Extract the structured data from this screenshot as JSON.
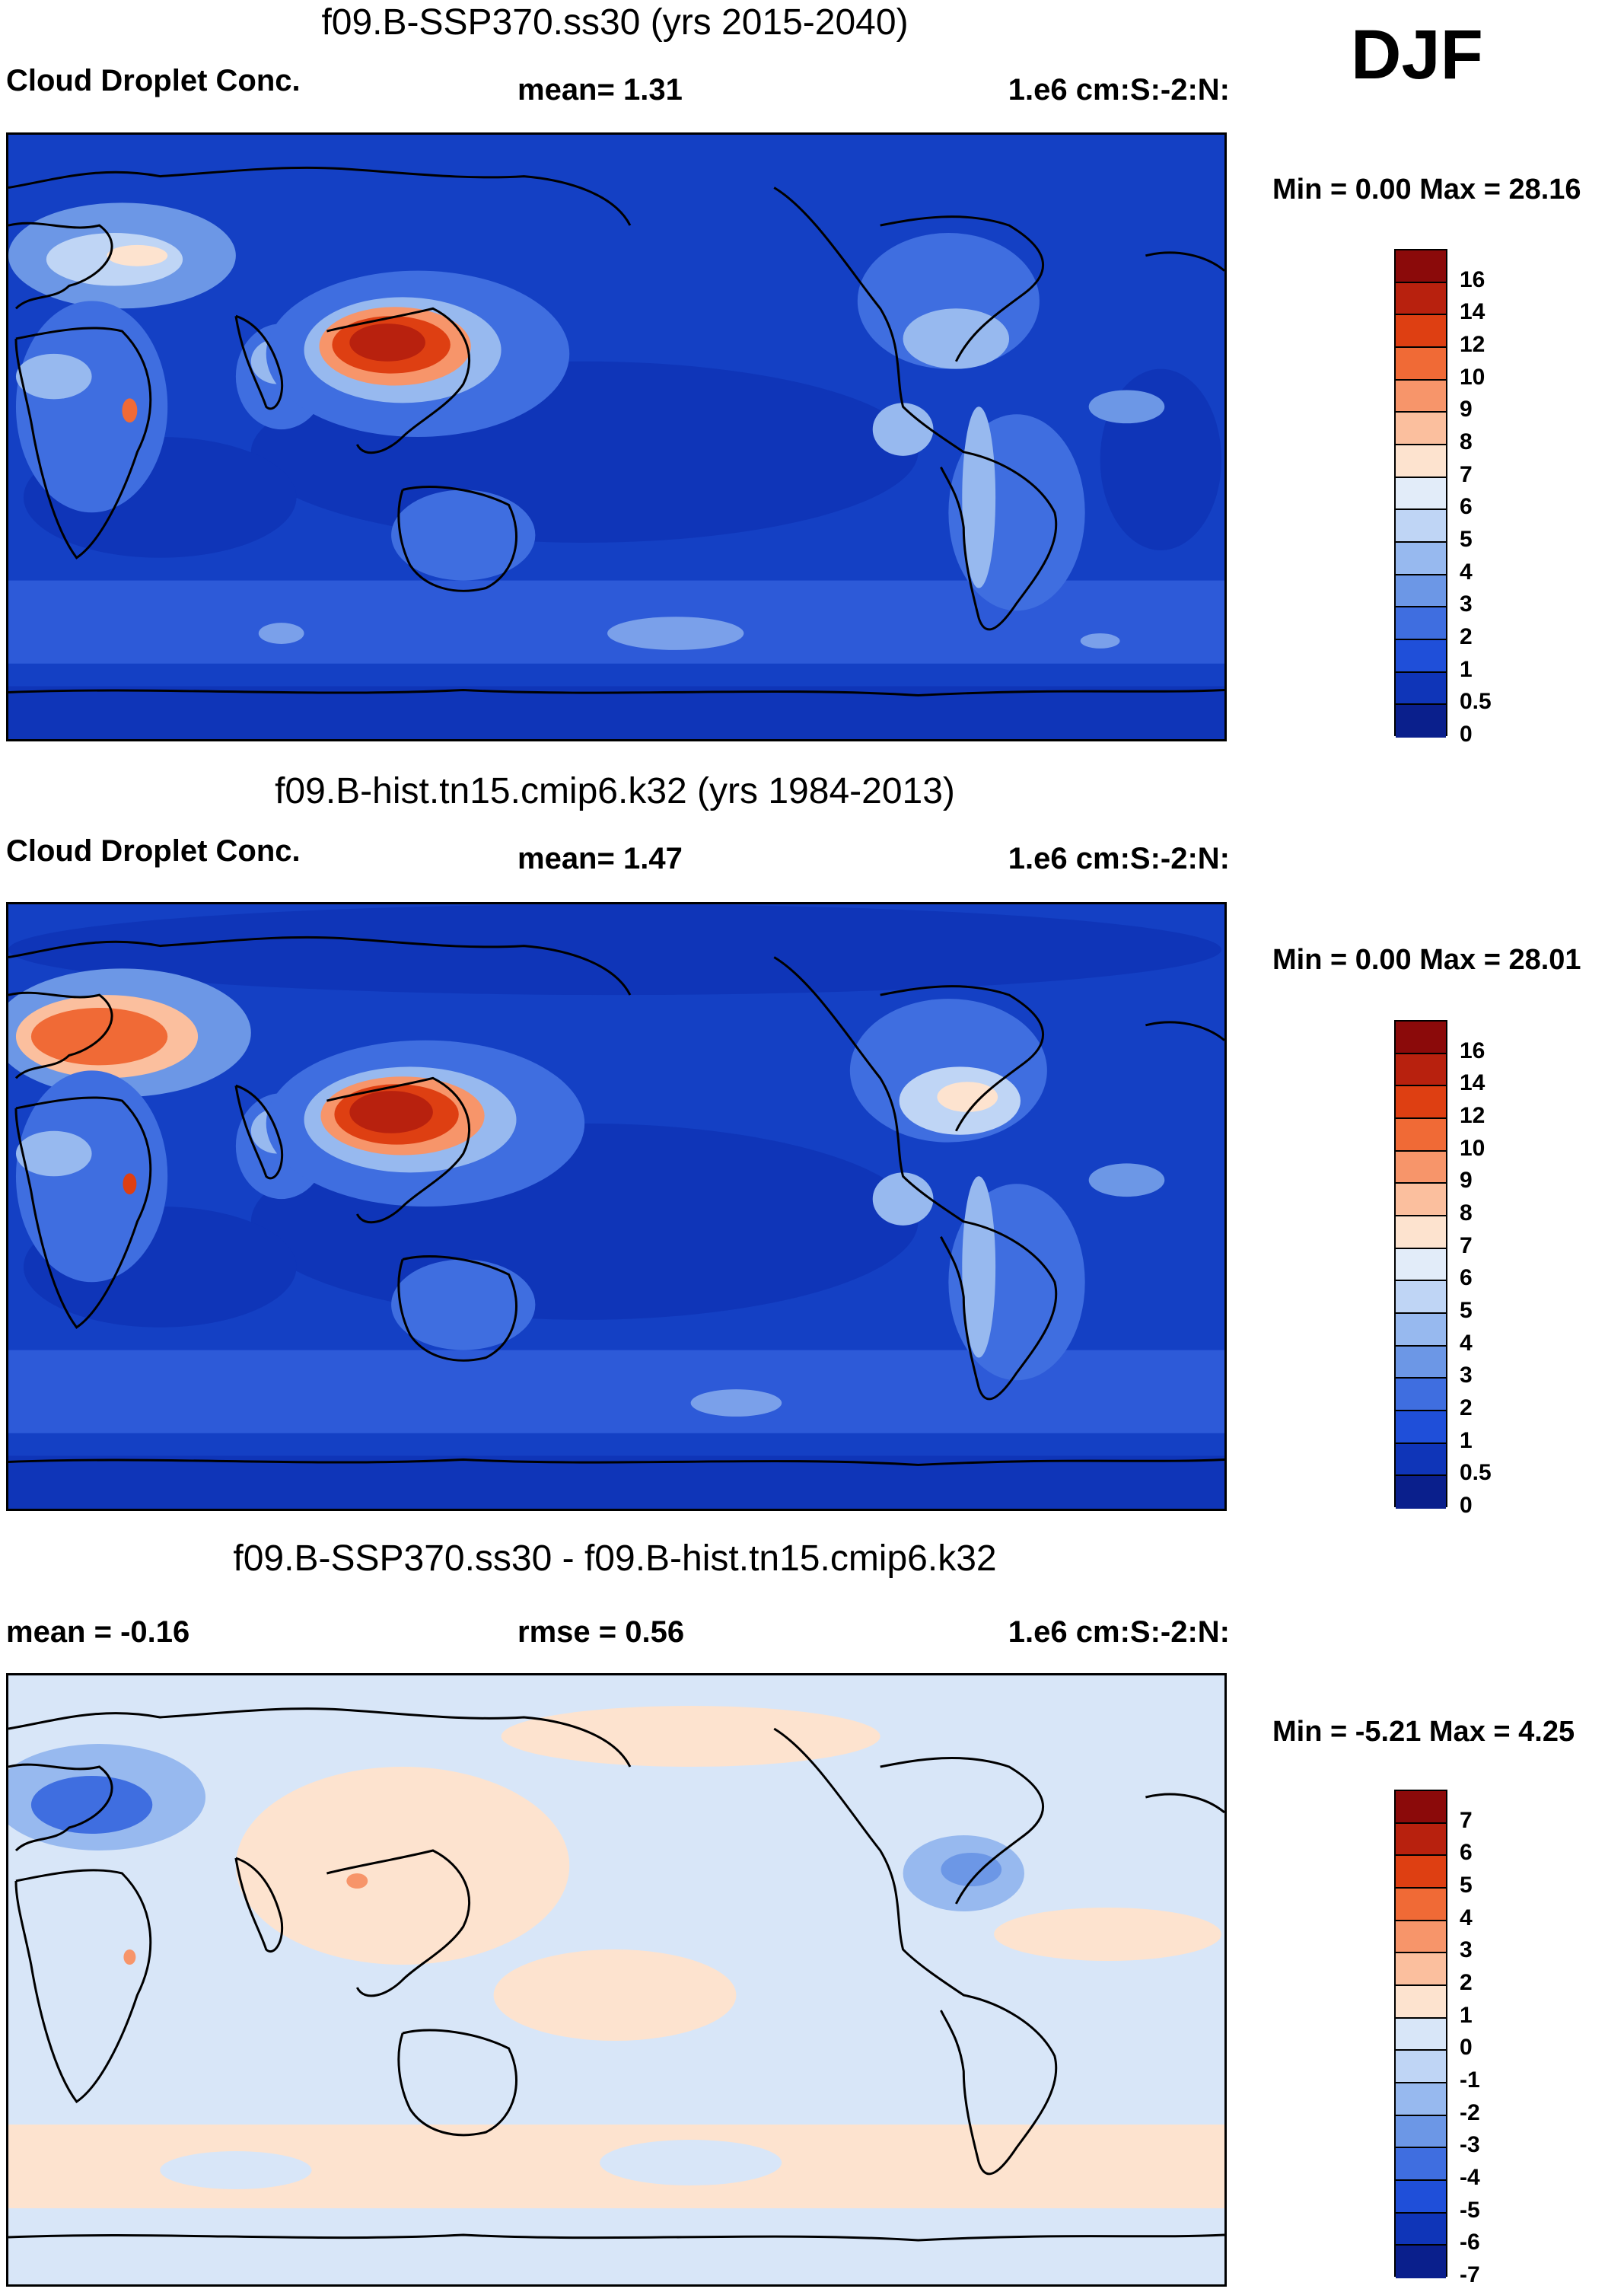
{
  "season": "DJF",
  "panels": [
    {
      "title": "f09.B-SSP370.ss30 (yrs 2015-2040)",
      "left_label": "Cloud Droplet Conc.",
      "mid_label": "mean=   1.31",
      "right_label": "1.e6 cm:S:-2:N:",
      "minmax": "Min =   0.00 Max =  28.16",
      "colorbar": {
        "labels": [
          "16",
          "14",
          "12",
          "10",
          "9",
          "8",
          "7",
          "6",
          "5",
          "4",
          "3",
          "2",
          "1",
          "0.5",
          "0"
        ],
        "colors": [
          "#8b0a0a",
          "#b8210e",
          "#de3f12",
          "#f06a36",
          "#f7956a",
          "#fbbf9e",
          "#fde3cf",
          "#e2ecf9",
          "#bfd5f5",
          "#97b9ef",
          "#6c97e6",
          "#3f6ee0",
          "#1f4fd9",
          "#0f35b8",
          "#0a1f8c"
        ]
      },
      "map": {
        "ocean": "#1440c4",
        "land_fill": "#3a6ce0",
        "region": "#2550d0"
      }
    },
    {
      "title": "f09.B-hist.tn15.cmip6.k32 (yrs 1984-2013)",
      "left_label": "Cloud Droplet Conc.",
      "mid_label": "mean=   1.47",
      "right_label": "1.e6 cm:S:-2:N:",
      "minmax": "Min =   0.00 Max =  28.01",
      "colorbar": {
        "labels": [
          "16",
          "14",
          "12",
          "10",
          "9",
          "8",
          "7",
          "6",
          "5",
          "4",
          "3",
          "2",
          "1",
          "0.5",
          "0"
        ],
        "colors": [
          "#8b0a0a",
          "#b8210e",
          "#de3f12",
          "#f06a36",
          "#f7956a",
          "#fbbf9e",
          "#fde3cf",
          "#e2ecf9",
          "#bfd5f5",
          "#97b9ef",
          "#6c97e6",
          "#3f6ee0",
          "#1f4fd9",
          "#0f35b8",
          "#0a1f8c"
        ]
      },
      "map": {
        "ocean": "#1440c4",
        "land_fill": "#3a6ce0",
        "region": "#2550d0"
      }
    },
    {
      "title": "f09.B-SSP370.ss30 - f09.B-hist.tn15.cmip6.k32",
      "left_label": "mean =  -0.16",
      "mid_label": "rmse =   0.56",
      "right_label": "1.e6 cm:S:-2:N:",
      "minmax": "Min =  -5.21 Max =   4.25",
      "colorbar": {
        "labels": [
          "7",
          "6",
          "5",
          "4",
          "3",
          "2",
          "1",
          "0",
          "-1",
          "-2",
          "-3",
          "-4",
          "-5",
          "-6",
          "-7"
        ],
        "colors": [
          "#8b0a0a",
          "#b8210e",
          "#de3f12",
          "#f06a36",
          "#f7956a",
          "#fbbf9e",
          "#fde3cf",
          "#d8e6f8",
          "#bfd5f5",
          "#97b9ef",
          "#6c97e6",
          "#3f6ee0",
          "#1f4fd9",
          "#0f35b8",
          "#0a1f8c"
        ]
      },
      "map": {
        "ocean": "#d8e6f8",
        "land_fill": "#dbe7f7",
        "region": "#fde3cf"
      }
    }
  ]
}
